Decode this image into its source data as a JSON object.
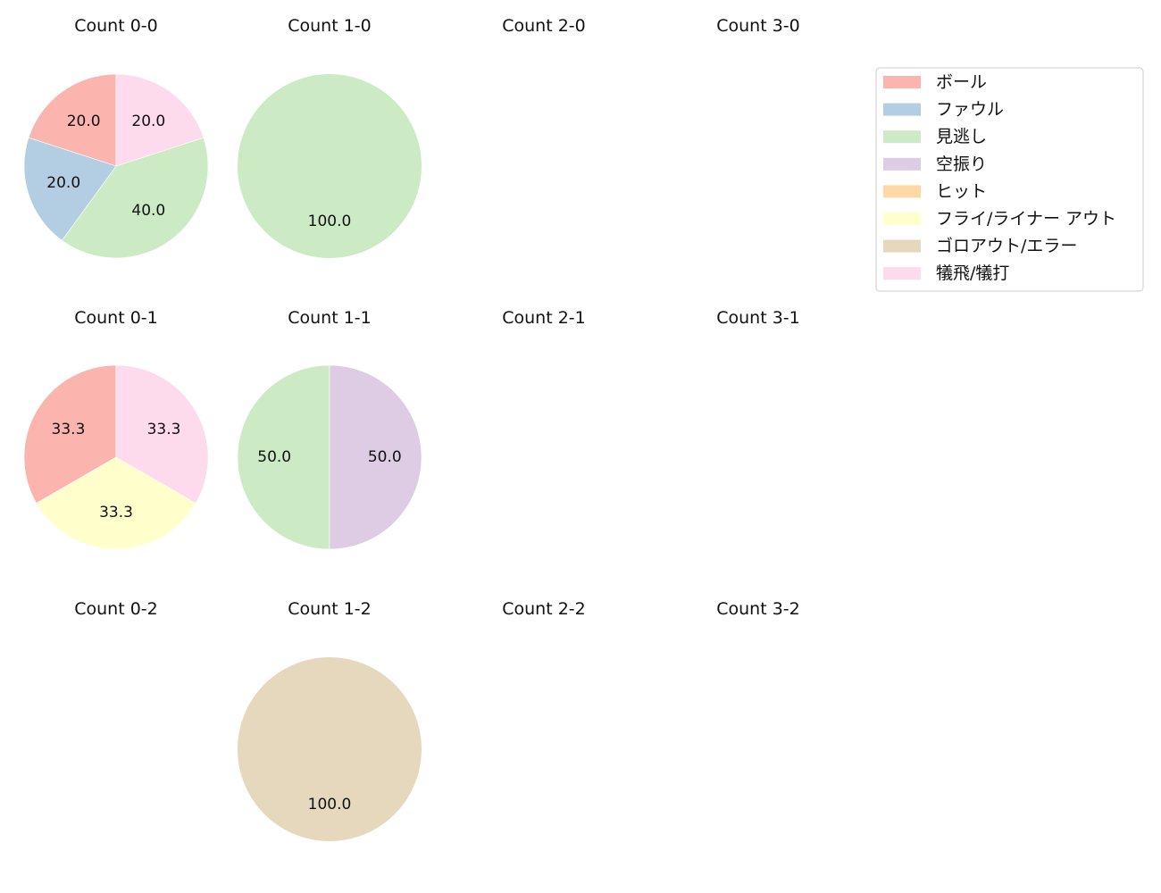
{
  "chart_data": {
    "type": "pie",
    "legend": {
      "placement": "top-right",
      "entries": [
        {
          "label": "ボール",
          "color": "#fbb4ae"
        },
        {
          "label": "ファウル",
          "color": "#b3cde3"
        },
        {
          "label": "見逃し",
          "color": "#ccebc5"
        },
        {
          "label": "空振り",
          "color": "#decbe4"
        },
        {
          "label": "ヒット",
          "color": "#fed9a6"
        },
        {
          "label": "フライ/ライナー アウト",
          "color": "#ffffcc"
        },
        {
          "label": "ゴロアウト/エラー",
          "color": "#e5d8bd"
        },
        {
          "label": "犠飛/犠打",
          "color": "#fddaec"
        }
      ]
    },
    "panels": [
      {
        "title": "Count 0-0",
        "slices": [
          {
            "category": "ボール",
            "value": 20.0
          },
          {
            "category": "ファウル",
            "value": 20.0
          },
          {
            "category": "見逃し",
            "value": 40.0
          },
          {
            "category": "犠飛/犠打",
            "value": 20.0
          }
        ]
      },
      {
        "title": "Count 1-0",
        "slices": [
          {
            "category": "見逃し",
            "value": 100.0
          }
        ]
      },
      {
        "title": "Count 2-0",
        "slices": []
      },
      {
        "title": "Count 3-0",
        "slices": []
      },
      {
        "title": "Count 0-1",
        "slices": [
          {
            "category": "ボール",
            "value": 33.3
          },
          {
            "category": "フライ/ライナー アウト",
            "value": 33.3
          },
          {
            "category": "犠飛/犠打",
            "value": 33.3
          }
        ]
      },
      {
        "title": "Count 1-1",
        "slices": [
          {
            "category": "見逃し",
            "value": 50.0
          },
          {
            "category": "空振り",
            "value": 50.0
          }
        ]
      },
      {
        "title": "Count 2-1",
        "slices": []
      },
      {
        "title": "Count 3-1",
        "slices": []
      },
      {
        "title": "Count 0-2",
        "slices": []
      },
      {
        "title": "Count 1-2",
        "slices": [
          {
            "category": "ゴロアウト/エラー",
            "value": 100.0
          }
        ]
      },
      {
        "title": "Count 2-2",
        "slices": []
      },
      {
        "title": "Count 3-2",
        "slices": []
      }
    ]
  }
}
